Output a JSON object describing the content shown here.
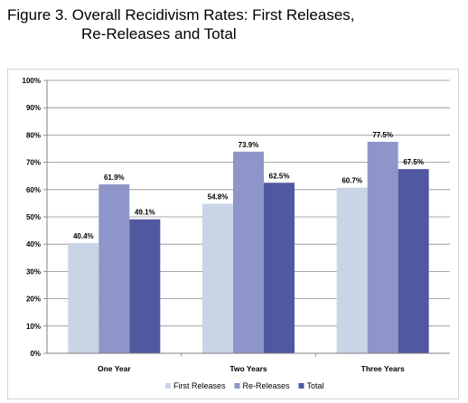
{
  "figure": {
    "title_line1": "Figure 3.  Overall Recidivism Rates:  First Releases,",
    "title_line2": "Re-Releases and Total"
  },
  "chart_data": {
    "type": "bar",
    "title": "Figure 3.  Overall Recidivism Rates:  First Releases, Re-Releases and Total",
    "categories": [
      "One Year",
      "Two Years",
      "Three Years"
    ],
    "series": [
      {
        "name": "First Releases",
        "values": [
          40.4,
          54.8,
          60.7
        ],
        "labels": [
          "40.4%",
          "54.8%",
          "60.7%"
        ],
        "color": "#c9d5e7"
      },
      {
        "name": "Re-Releases",
        "values": [
          61.9,
          73.9,
          77.5
        ],
        "labels": [
          "61.9%",
          "73.9%",
          "77.5%"
        ],
        "color": "#8e96c9"
      },
      {
        "name": "Total",
        "values": [
          49.1,
          62.5,
          67.5
        ],
        "labels": [
          "49.1%",
          "62.5%",
          "67.5%"
        ],
        "color": "#50589f"
      }
    ],
    "ylim": [
      0,
      100
    ],
    "yticks": [
      "0%",
      "10%",
      "20%",
      "30%",
      "40%",
      "50%",
      "60%",
      "70%",
      "80%",
      "90%",
      "100%"
    ],
    "grid": true,
    "legend": "bottom",
    "xlabel": "",
    "ylabel": ""
  }
}
